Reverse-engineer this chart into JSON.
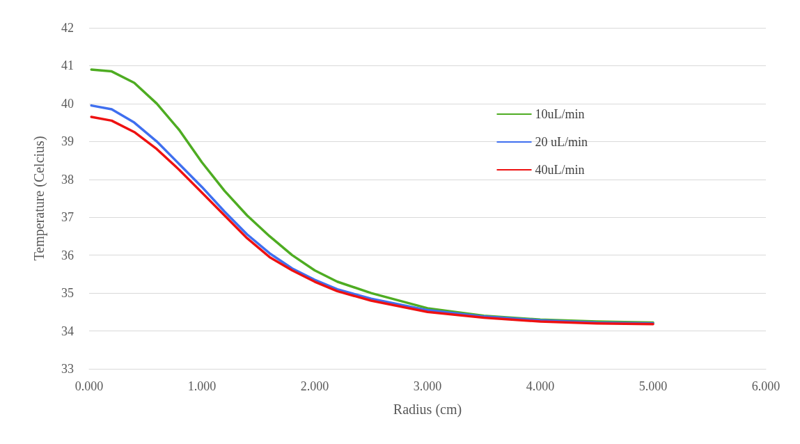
{
  "chart_data": {
    "type": "line",
    "xlabel": "Radius (cm)",
    "ylabel": "Temperature (Celcius)",
    "xlim": [
      0,
      6
    ],
    "xticks": [
      {
        "value": 0,
        "label": "0.000"
      },
      {
        "value": 1,
        "label": "1.000"
      },
      {
        "value": 2,
        "label": "2.000"
      },
      {
        "value": 3,
        "label": "3.000"
      },
      {
        "value": 4,
        "label": "4.000"
      },
      {
        "value": 5,
        "label": "5.000"
      },
      {
        "value": 6,
        "label": "6.000"
      }
    ],
    "ylim": [
      33,
      42
    ],
    "yticks": [
      33,
      34,
      35,
      36,
      37,
      38,
      39,
      40,
      41,
      42
    ],
    "x": [
      0.02,
      0.2,
      0.4,
      0.6,
      0.8,
      1.0,
      1.2,
      1.4,
      1.6,
      1.8,
      2.0,
      2.2,
      2.5,
      3.0,
      3.5,
      4.0,
      4.5,
      5.0
    ],
    "series": [
      {
        "name": "10uL/min",
        "color": "#4eac22",
        "values": [
          40.9,
          40.85,
          40.55,
          40.0,
          39.3,
          38.45,
          37.7,
          37.05,
          36.5,
          36.0,
          35.6,
          35.3,
          35.0,
          34.6,
          34.4,
          34.3,
          34.25,
          34.22
        ]
      },
      {
        "name": "20 uL/min",
        "color": "#3f6fef",
        "values": [
          39.95,
          39.85,
          39.5,
          39.0,
          38.4,
          37.8,
          37.15,
          36.55,
          36.05,
          35.65,
          35.35,
          35.1,
          34.85,
          34.55,
          34.38,
          34.28,
          34.22,
          34.2
        ]
      },
      {
        "name": "40uL/min",
        "color": "#ee1111",
        "values": [
          39.65,
          39.55,
          39.25,
          38.8,
          38.25,
          37.65,
          37.05,
          36.45,
          35.95,
          35.6,
          35.3,
          35.05,
          34.8,
          34.5,
          34.35,
          34.25,
          34.2,
          34.18
        ]
      }
    ],
    "grid": "y",
    "legend": "top right",
    "marker": "none",
    "line_style": "solid"
  }
}
